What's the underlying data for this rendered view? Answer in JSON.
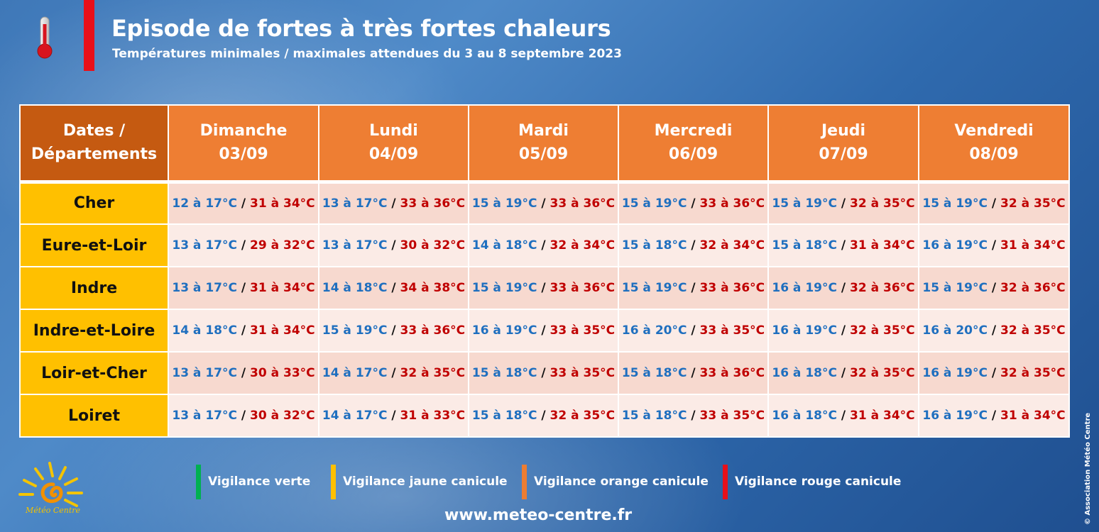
{
  "header": {
    "title": "Episode de fortes à très fortes chaleurs",
    "subtitle": "Températures minimales / maximales attendues du 3 au 8 septembre 2023"
  },
  "table": {
    "corner_line1": "Dates /",
    "corner_line2": "Départements",
    "days": [
      {
        "name": "Dimanche",
        "date": "03/09"
      },
      {
        "name": "Lundi",
        "date": "04/09"
      },
      {
        "name": "Mardi",
        "date": "05/09"
      },
      {
        "name": "Mercredi",
        "date": "06/09"
      },
      {
        "name": "Jeudi",
        "date": "07/09"
      },
      {
        "name": "Vendredi",
        "date": "08/09"
      }
    ],
    "rows": [
      {
        "dept": "Cher",
        "cells": [
          {
            "min": "12 à 17°C",
            "max": "31 à 34°C"
          },
          {
            "min": "13 à 17°C",
            "max": "33 à 36°C"
          },
          {
            "min": "15 à 19°C",
            "max": "33 à 36°C"
          },
          {
            "min": "15 à 19°C",
            "max": "33 à 36°C"
          },
          {
            "min": "15 à 19°C",
            "max": "32 à 35°C"
          },
          {
            "min": "15 à 19°C",
            "max": "32 à 35°C"
          }
        ]
      },
      {
        "dept": "Eure-et-Loir",
        "cells": [
          {
            "min": "13 à 17°C",
            "max": "29 à 32°C"
          },
          {
            "min": "13 à 17°C",
            "max": "30 à 32°C"
          },
          {
            "min": "14 à 18°C",
            "max": "32 à 34°C"
          },
          {
            "min": "15 à 18°C",
            "max": "32 à 34°C"
          },
          {
            "min": "15 à 18°C",
            "max": "31 à 34°C"
          },
          {
            "min": "16 à 19°C",
            "max": "31 à 34°C"
          }
        ]
      },
      {
        "dept": "Indre",
        "cells": [
          {
            "min": "13 à 17°C",
            "max": "31 à 34°C"
          },
          {
            "min": "14 à 18°C",
            "max": "34 à 38°C"
          },
          {
            "min": "15 à 19°C",
            "max": "33 à 36°C"
          },
          {
            "min": "15 à 19°C",
            "max": "33 à 36°C"
          },
          {
            "min": "16 à 19°C",
            "max": "32 à 36°C"
          },
          {
            "min": "15 à 19°C",
            "max": "32 à 36°C"
          }
        ]
      },
      {
        "dept": "Indre-et-Loire",
        "cells": [
          {
            "min": "14 à 18°C",
            "max": "31 à 34°C"
          },
          {
            "min": "15 à 19°C",
            "max": "33 à 36°C"
          },
          {
            "min": "16 à 19°C",
            "max": "33 à 35°C"
          },
          {
            "min": "16 à 20°C",
            "max": "33 à 35°C"
          },
          {
            "min": "16 à 19°C",
            "max": "32 à 35°C"
          },
          {
            "min": "16 à 20°C",
            "max": "32 à 35°C"
          }
        ]
      },
      {
        "dept": "Loir-et-Cher",
        "cells": [
          {
            "min": "13 à 17°C",
            "max": "30 à 33°C"
          },
          {
            "min": "14 à 17°C",
            "max": "32 à 35°C"
          },
          {
            "min": "15 à 18°C",
            "max": "33 à 35°C"
          },
          {
            "min": "15 à 18°C",
            "max": "33 à 36°C"
          },
          {
            "min": "16 à 18°C",
            "max": "32 à 35°C"
          },
          {
            "min": "16 à 19°C",
            "max": "32 à 35°C"
          }
        ]
      },
      {
        "dept": "Loiret",
        "cells": [
          {
            "min": "13 à 17°C",
            "max": "30 à 32°C"
          },
          {
            "min": "14 à 17°C",
            "max": "31 à 33°C"
          },
          {
            "min": "15 à 18°C",
            "max": "32 à 35°C"
          },
          {
            "min": "15 à 18°C",
            "max": "33 à 35°C"
          },
          {
            "min": "16 à 18°C",
            "max": "31 à 34°C"
          },
          {
            "min": "16 à 19°C",
            "max": "31 à 34°C"
          }
        ]
      }
    ],
    "separator": "/"
  },
  "legend": [
    {
      "label": "Vigilance verte",
      "color": "#00b050"
    },
    {
      "label": "Vigilance jaune canicule",
      "color": "#ffc000"
    },
    {
      "label": "Vigilance orange canicule",
      "color": "#ed7d31"
    },
    {
      "label": "Vigilance rouge canicule",
      "color": "#e8101a"
    }
  ],
  "footer": {
    "logo_text": "Météo Centre",
    "website": "www.meteo-centre.fr",
    "copyright": "© Association Météo Centre"
  },
  "colors": {
    "min_temp": "#1f6fbf",
    "max_temp": "#c00000",
    "header_orange": "#ee7e33",
    "corner_orange": "#c55a11",
    "dept_yellow": "#ffc000"
  },
  "icons": {
    "thermometer": "thermometer-icon",
    "logo": "sun-logo-icon"
  }
}
